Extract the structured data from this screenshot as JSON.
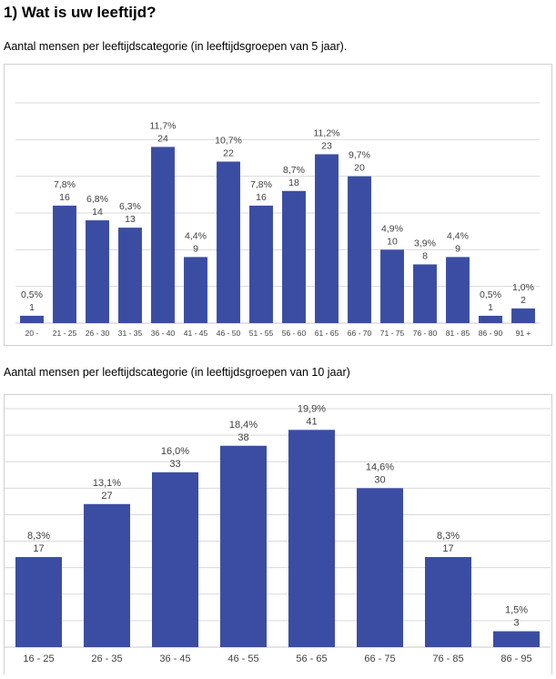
{
  "heading": "1) Wat is uw leeftijd?",
  "colors": {
    "bar": "#3b4da3",
    "grid": "#d9d9d9",
    "axis": "#c8c8c8",
    "label": "#404040"
  },
  "chart_data": [
    {
      "type": "bar",
      "title": "Aantal mensen per leeftijdscategorie (in leeftijdsgroepen van 5 jaar).",
      "categories": [
        "20 -",
        "21 - 25",
        "26 - 30",
        "31 - 35",
        "36 - 40",
        "41 - 45",
        "46 - 50",
        "51 - 55",
        "56 - 60",
        "61 - 65",
        "66 - 70",
        "71 - 75",
        "76 - 80",
        "81 - 85",
        "86 - 90",
        "91 +"
      ],
      "values": [
        1,
        16,
        14,
        13,
        24,
        9,
        22,
        16,
        18,
        23,
        20,
        10,
        8,
        9,
        1,
        2
      ],
      "percent_labels": [
        "0,5%",
        "7,8%",
        "6,8%",
        "6,3%",
        "11,7%",
        "4,4%",
        "10,7%",
        "7,8%",
        "8,7%",
        "11,2%",
        "9,7%",
        "4,9%",
        "3,9%",
        "4,4%",
        "0,5%",
        "1,0%"
      ],
      "ylim": [
        0,
        30
      ],
      "grid": true,
      "xlabel": "",
      "ylabel": ""
    },
    {
      "type": "bar",
      "title": "Aantal mensen per leeftijdscategorie (in leeftijdsgroepen van 10 jaar)",
      "categories": [
        "16 - 25",
        "26 - 35",
        "36 - 45",
        "46 - 55",
        "56 - 65",
        "66 - 75",
        "76 - 85",
        "86 - 95"
      ],
      "values": [
        17,
        27,
        33,
        38,
        41,
        30,
        17,
        3
      ],
      "percent_labels": [
        "8,3%",
        "13,1%",
        "16,0%",
        "18,4%",
        "19,9%",
        "14,6%",
        "8,3%",
        "1,5%"
      ],
      "ylim": [
        0,
        45
      ],
      "grid": true,
      "xlabel": "",
      "ylabel": ""
    }
  ]
}
